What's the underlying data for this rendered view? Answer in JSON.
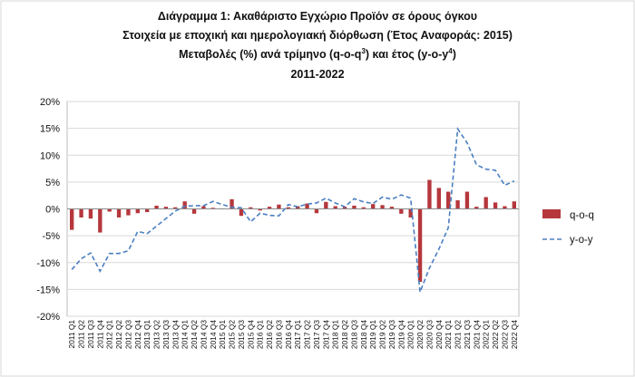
{
  "chart_data": {
    "type": "bar",
    "title_lines": [
      "Διάγραμμα 1: Ακαθάριστο Εγχώριο Προϊόν σε όρους όγκου",
      "Στοιχεία με εποχική και ημερολογιακή διόρθωση (Έτος Αναφοράς: 2015)",
      "2011-2022"
    ],
    "title_line3": {
      "text_a": "Μεταβολές (%) ανά τρίμηνο (q-o-q",
      "sup_a": "3",
      "text_b": ") και έτος (y-o-y",
      "sup_b": "4",
      "text_c": ")"
    },
    "ylim": [
      -20,
      20
    ],
    "yticks": [
      "20%",
      "15%",
      "10%",
      "5%",
      "0%",
      "-5%",
      "-10%",
      "-15%",
      "-20%"
    ],
    "ytick_values": [
      20,
      15,
      10,
      5,
      0,
      -5,
      -10,
      -15,
      -20
    ],
    "categories": [
      "2011 Q1",
      "2011 Q2",
      "2011 Q3",
      "2011 Q4",
      "2012 Q1",
      "2012 Q2",
      "2012 Q3",
      "2012 Q4",
      "2013 Q1",
      "2013 Q2",
      "2013 Q3",
      "2013 Q4",
      "2014 Q1",
      "2014 Q2",
      "2014 Q3",
      "2014 Q4",
      "2015 Q1",
      "2015 Q2",
      "2015 Q3",
      "2015 Q4",
      "2016 Q1",
      "2016 Q2",
      "2016 Q3",
      "2016 Q4",
      "2017 Q1",
      "2017 Q2",
      "2017 Q3",
      "2017 Q4",
      "2018 Q1",
      "2018 Q2",
      "2018 Q3",
      "2018 Q4",
      "2019 Q1",
      "2019 Q2",
      "2019 Q3",
      "2019 Q4",
      "2020 Q1",
      "2020 Q2",
      "2020 Q3",
      "2020 Q4",
      "2021 Q1",
      "2021 Q2",
      "2021 Q3",
      "2021 Q4",
      "2022 Q1",
      "2022 Q2",
      "2022 Q3",
      "2022 Q4"
    ],
    "series": [
      {
        "name": "q-o-q",
        "kind": "bar",
        "color": "#b5373c",
        "values": [
          -3.9,
          -1.6,
          -1.8,
          -4.4,
          -0.5,
          -1.6,
          -1.2,
          -0.8,
          -0.6,
          0.6,
          0.4,
          0.3,
          1.4,
          -0.9,
          0.5,
          0.2,
          0.1,
          1.8,
          -1.3,
          0.3,
          -0.3,
          0.4,
          0.8,
          0.3,
          0.5,
          1.0,
          -0.8,
          1.3,
          0.5,
          0.4,
          0.6,
          0.3,
          0.9,
          0.7,
          0.4,
          -0.9,
          -1.6,
          -13.6,
          5.4,
          3.9,
          3.2,
          1.6,
          3.2,
          0.4,
          2.2,
          1.2,
          0.5,
          1.4
        ]
      },
      {
        "name": "y-o-y",
        "kind": "line",
        "color": "#4a7fc1",
        "dash": "dashed",
        "values": [
          -11.3,
          -9.3,
          -8.2,
          -11.6,
          -8.3,
          -8.3,
          -7.8,
          -4.2,
          -4.6,
          -3.2,
          -1.8,
          -0.4,
          0.5,
          0.6,
          0.6,
          1.4,
          0.8,
          0.3,
          0.2,
          -2.4,
          -0.8,
          -1.2,
          -1.3,
          0.8,
          0.4,
          0.9,
          1.1,
          2.0,
          1.1,
          0.4,
          1.9,
          1.3,
          1.0,
          2.2,
          1.8,
          2.6,
          2.0,
          -15.5,
          -11.0,
          -7.5,
          -3.5,
          14.9,
          12.3,
          8.2,
          7.4,
          7.2,
          4.4,
          5.2
        ]
      }
    ],
    "legend": {
      "position": "right",
      "entries": [
        "q-o-q",
        "y-o-y"
      ]
    },
    "grid": {
      "horizontal": true,
      "vertical": false
    }
  }
}
